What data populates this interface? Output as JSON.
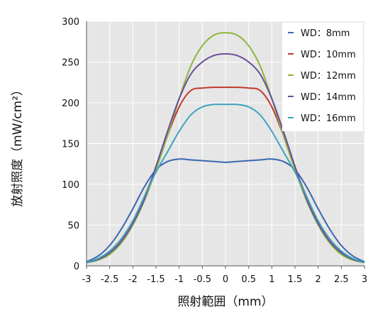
{
  "chart_data": {
    "type": "line",
    "title": "",
    "xlabel": "照射範囲（mm）",
    "ylabel": "放射照度（mW/cm²）",
    "xlim": [
      -3,
      3
    ],
    "ylim": [
      0,
      300
    ],
    "xticks": [
      "-3",
      "-2.5",
      "-2",
      "-1.5",
      "-1",
      "-0.5",
      "0",
      "0.5",
      "1",
      "1.5",
      "2",
      "2.5",
      "3"
    ],
    "yticks": [
      "0",
      "50",
      "100",
      "150",
      "200",
      "250",
      "300"
    ],
    "grid": true,
    "legend_position": "top-right",
    "x": [
      -3,
      -2.75,
      -2.5,
      -2.25,
      -2,
      -1.75,
      -1.5,
      -1.25,
      -1,
      -0.75,
      -0.5,
      -0.25,
      0,
      0.25,
      0.5,
      0.75,
      1,
      1.25,
      1.5,
      1.75,
      2,
      2.25,
      2.5,
      2.75,
      3
    ],
    "series": [
      {
        "name": "WD：8mm",
        "color": "#3a66ae",
        "values": [
          5,
          12,
          25,
          45,
          70,
          97,
          118,
          128,
          131,
          130,
          129,
          128,
          127,
          128,
          129,
          130,
          131,
          128,
          118,
          97,
          70,
          45,
          25,
          12,
          5
        ]
      },
      {
        "name": "WD：10mm",
        "color": "#c0392b",
        "values": [
          4,
          8,
          18,
          33,
          55,
          85,
          120,
          160,
          195,
          215,
          218,
          219,
          219,
          219,
          218,
          215,
          195,
          160,
          120,
          85,
          55,
          33,
          18,
          8,
          4
        ]
      },
      {
        "name": "WD：12mm",
        "color": "#8db53c",
        "values": [
          4,
          7,
          14,
          28,
          50,
          80,
          118,
          160,
          205,
          245,
          270,
          283,
          286,
          283,
          270,
          245,
          205,
          160,
          118,
          80,
          50,
          28,
          14,
          7,
          4
        ]
      },
      {
        "name": "WD：14mm",
        "color": "#6a4c9c",
        "values": [
          4,
          8,
          16,
          30,
          52,
          82,
          122,
          165,
          205,
          235,
          250,
          258,
          260,
          258,
          250,
          235,
          205,
          165,
          122,
          82,
          52,
          30,
          16,
          8,
          4
        ]
      },
      {
        "name": "WD：16mm",
        "color": "#3aa3bf",
        "values": [
          4,
          9,
          18,
          33,
          55,
          85,
          115,
          140,
          165,
          185,
          195,
          198,
          198,
          198,
          195,
          185,
          165,
          140,
          115,
          85,
          55,
          33,
          18,
          9,
          4
        ]
      }
    ]
  }
}
